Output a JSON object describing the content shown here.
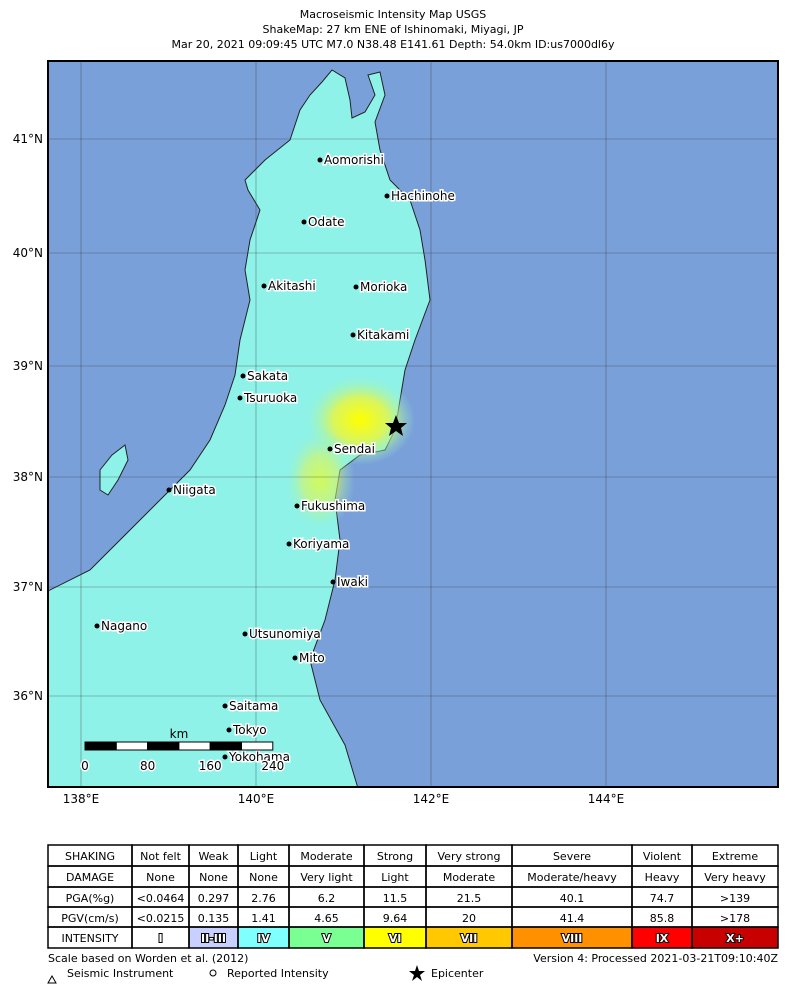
{
  "header": {
    "title": [
      "Macroseismic Intensity Map USGS",
      "ShakeMap: 27 km ENE of Ishinomaki, Miyagi, JP",
      "Mar 20, 2021 09:09:45 UTC M7.0 N38.48 E141.61 Depth: 54.0km ID:us7000dl6y"
    ]
  },
  "map": {
    "lat_labels": [
      "41°N",
      "40°N",
      "39°N",
      "38°N",
      "37°N",
      "36°N"
    ],
    "lon_labels": [
      "138°E",
      "140°E",
      "142°E",
      "144°E"
    ],
    "cities": [
      "Aomorishi",
      "Hachinohe",
      "Odate",
      "Akitashi",
      "Morioka",
      "Kitakami",
      "Sakata",
      "Tsuruoka",
      "Sendai",
      "Niigata",
      "Fukushima",
      "Koriyama",
      "Iwaki",
      "Nagano",
      "Utsunomiya",
      "Mito",
      "Saitama",
      "Tokyo",
      "Yokohama"
    ],
    "scale_bar": {
      "unit": "km",
      "labels": [
        "0",
        "80",
        "160",
        "240"
      ]
    }
  },
  "table": {
    "rows": [
      [
        "SHAKING",
        "Not felt",
        "Weak",
        "Light",
        "Moderate",
        "Strong",
        "Very strong",
        "Severe",
        "Violent",
        "Extreme"
      ],
      [
        "DAMAGE",
        "None",
        "None",
        "None",
        "Very light",
        "Light",
        "Moderate",
        "Moderate/heavy",
        "Heavy",
        "Very heavy"
      ],
      [
        "PGA(%g)",
        "<0.0464",
        "0.297",
        "2.76",
        "6.2",
        "11.5",
        "21.5",
        "40.1",
        "74.7",
        ">139"
      ],
      [
        "PGV(cm/s)",
        "<0.0215",
        "0.135",
        "1.41",
        "4.65",
        "9.64",
        "20",
        "41.4",
        "85.8",
        ">178"
      ],
      [
        "INTENSITY",
        "I",
        "II-III",
        "IV",
        "V",
        "VI",
        "VII",
        "VIII",
        "IX",
        "X+"
      ]
    ]
  },
  "footer": {
    "scale_note": "Scale based on Worden et al. (2012)",
    "version": "Version 4: Processed 2021-03-21T09:10:40Z",
    "legend": [
      "Seismic Instrument",
      "Reported Intensity",
      "Epicenter"
    ]
  }
}
